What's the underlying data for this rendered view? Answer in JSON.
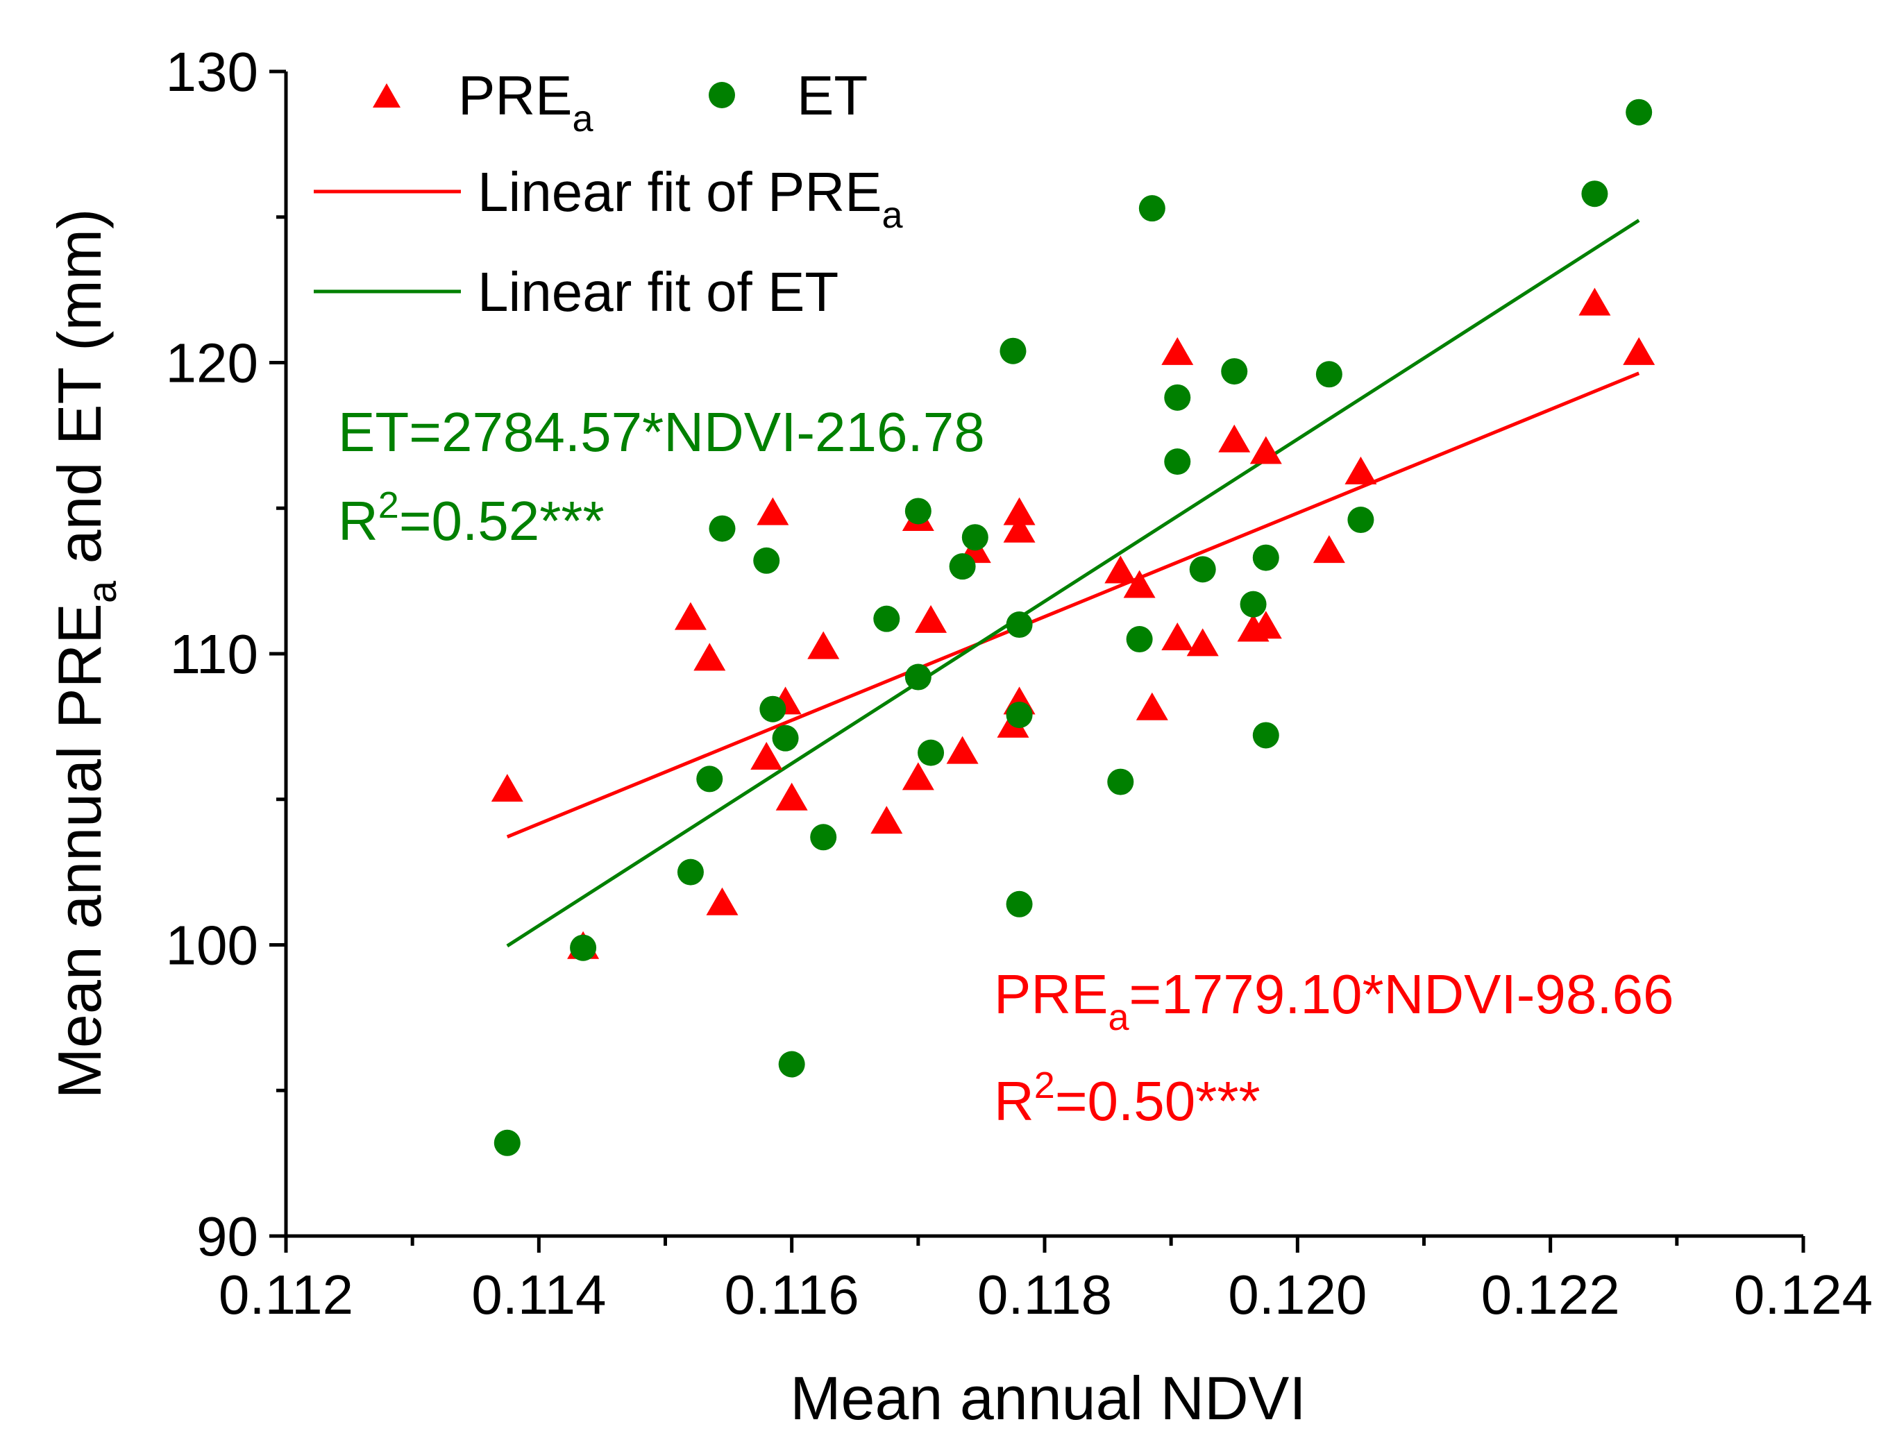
{
  "chart_data": {
    "type": "scatter",
    "xlabel": "Mean annual NDVI",
    "ylabel": {
      "main": "Mean annual PRE",
      "sub": "a",
      "rest": " and ET (mm)"
    },
    "xlim": [
      0.112,
      0.124
    ],
    "ylim": [
      90,
      130
    ],
    "xticks": [
      "0.112",
      "0.114",
      "0.116",
      "0.118",
      "0.120",
      "0.122",
      "0.124"
    ],
    "xtick_values": [
      0.112,
      0.114,
      0.116,
      0.118,
      0.12,
      0.122,
      0.124
    ],
    "yticks": [
      "90",
      "100",
      "110",
      "120",
      "130"
    ],
    "ytick_values": [
      90,
      100,
      110,
      120,
      130
    ],
    "colors": {
      "pre": "#ff0000",
      "et": "#008000"
    },
    "series": [
      {
        "name": "PRE",
        "name_sub": "a",
        "marker": "triangle",
        "points": [
          [
            0.11375,
            105.3
          ],
          [
            0.11435,
            99.9
          ],
          [
            0.1152,
            111.2
          ],
          [
            0.11535,
            109.8
          ],
          [
            0.11545,
            101.4
          ],
          [
            0.1158,
            106.4
          ],
          [
            0.11585,
            114.8
          ],
          [
            0.11595,
            108.3
          ],
          [
            0.116,
            105.0
          ],
          [
            0.11625,
            110.2
          ],
          [
            0.11675,
            104.2
          ],
          [
            0.117,
            105.7
          ],
          [
            0.117,
            114.6
          ],
          [
            0.1171,
            111.1
          ],
          [
            0.11735,
            106.6
          ],
          [
            0.11745,
            113.5
          ],
          [
            0.11775,
            107.5
          ],
          [
            0.1178,
            114.8
          ],
          [
            0.1178,
            114.2
          ],
          [
            0.1178,
            108.3
          ],
          [
            0.1186,
            112.8
          ],
          [
            0.11875,
            112.3
          ],
          [
            0.11885,
            108.1
          ],
          [
            0.11905,
            120.3
          ],
          [
            0.11905,
            110.5
          ],
          [
            0.11925,
            110.3
          ],
          [
            0.1195,
            117.3
          ],
          [
            0.11965,
            110.8
          ],
          [
            0.11975,
            116.9
          ],
          [
            0.11975,
            110.9
          ],
          [
            0.12025,
            113.5
          ],
          [
            0.1205,
            116.2
          ],
          [
            0.12235,
            122.0
          ],
          [
            0.1227,
            120.3
          ]
        ],
        "fit": {
          "label": "Linear fit of PRE",
          "label_sub": "a",
          "slope": 1779.1,
          "intercept": -98.66,
          "x_range": [
            0.11375,
            0.1227
          ]
        },
        "equation": {
          "main": "PRE",
          "sub": "a",
          "rest": "=1779.10*NDVI-98.66"
        },
        "r2": {
          "pre": "R",
          "sup": "2",
          "rest": "=0.50***"
        }
      },
      {
        "name": "ET",
        "marker": "circle",
        "points": [
          [
            0.11375,
            93.2
          ],
          [
            0.11435,
            99.9
          ],
          [
            0.1152,
            102.5
          ],
          [
            0.11535,
            105.7
          ],
          [
            0.11545,
            114.3
          ],
          [
            0.1158,
            113.2
          ],
          [
            0.11585,
            108.1
          ],
          [
            0.11595,
            107.1
          ],
          [
            0.116,
            95.9
          ],
          [
            0.11625,
            103.7
          ],
          [
            0.11675,
            111.2
          ],
          [
            0.117,
            114.9
          ],
          [
            0.117,
            109.2
          ],
          [
            0.1171,
            106.6
          ],
          [
            0.11735,
            113.0
          ],
          [
            0.11745,
            114.0
          ],
          [
            0.11775,
            120.4
          ],
          [
            0.1178,
            111.0
          ],
          [
            0.1178,
            107.9
          ],
          [
            0.1178,
            101.4
          ],
          [
            0.1186,
            105.6
          ],
          [
            0.11875,
            110.5
          ],
          [
            0.11885,
            125.3
          ],
          [
            0.11905,
            118.8
          ],
          [
            0.11905,
            116.6
          ],
          [
            0.11925,
            112.9
          ],
          [
            0.1195,
            119.7
          ],
          [
            0.11965,
            111.7
          ],
          [
            0.11975,
            113.3
          ],
          [
            0.11975,
            107.2
          ],
          [
            0.12025,
            119.6
          ],
          [
            0.1205,
            114.6
          ],
          [
            0.12235,
            125.8
          ],
          [
            0.1227,
            128.6
          ]
        ],
        "fit": {
          "label": "Linear fit of ET",
          "slope": 2784.57,
          "intercept": -216.78,
          "x_range": [
            0.11375,
            0.1227
          ]
        },
        "equation": {
          "main": "ET=2784.57*NDVI-216.78"
        },
        "r2": {
          "pre": "R",
          "sup": "2",
          "rest": "=0.52***"
        }
      }
    ],
    "legend": {
      "position": "top-left",
      "entries": [
        {
          "kind": "marker",
          "marker": "triangle",
          "label": "PRE",
          "sub": "a"
        },
        {
          "kind": "marker",
          "marker": "circle",
          "label": "ET"
        },
        {
          "kind": "line",
          "color": "pre",
          "label": "Linear fit of PRE",
          "sub": "a"
        },
        {
          "kind": "line",
          "color": "et",
          "label": "Linear fit of ET"
        }
      ]
    }
  }
}
